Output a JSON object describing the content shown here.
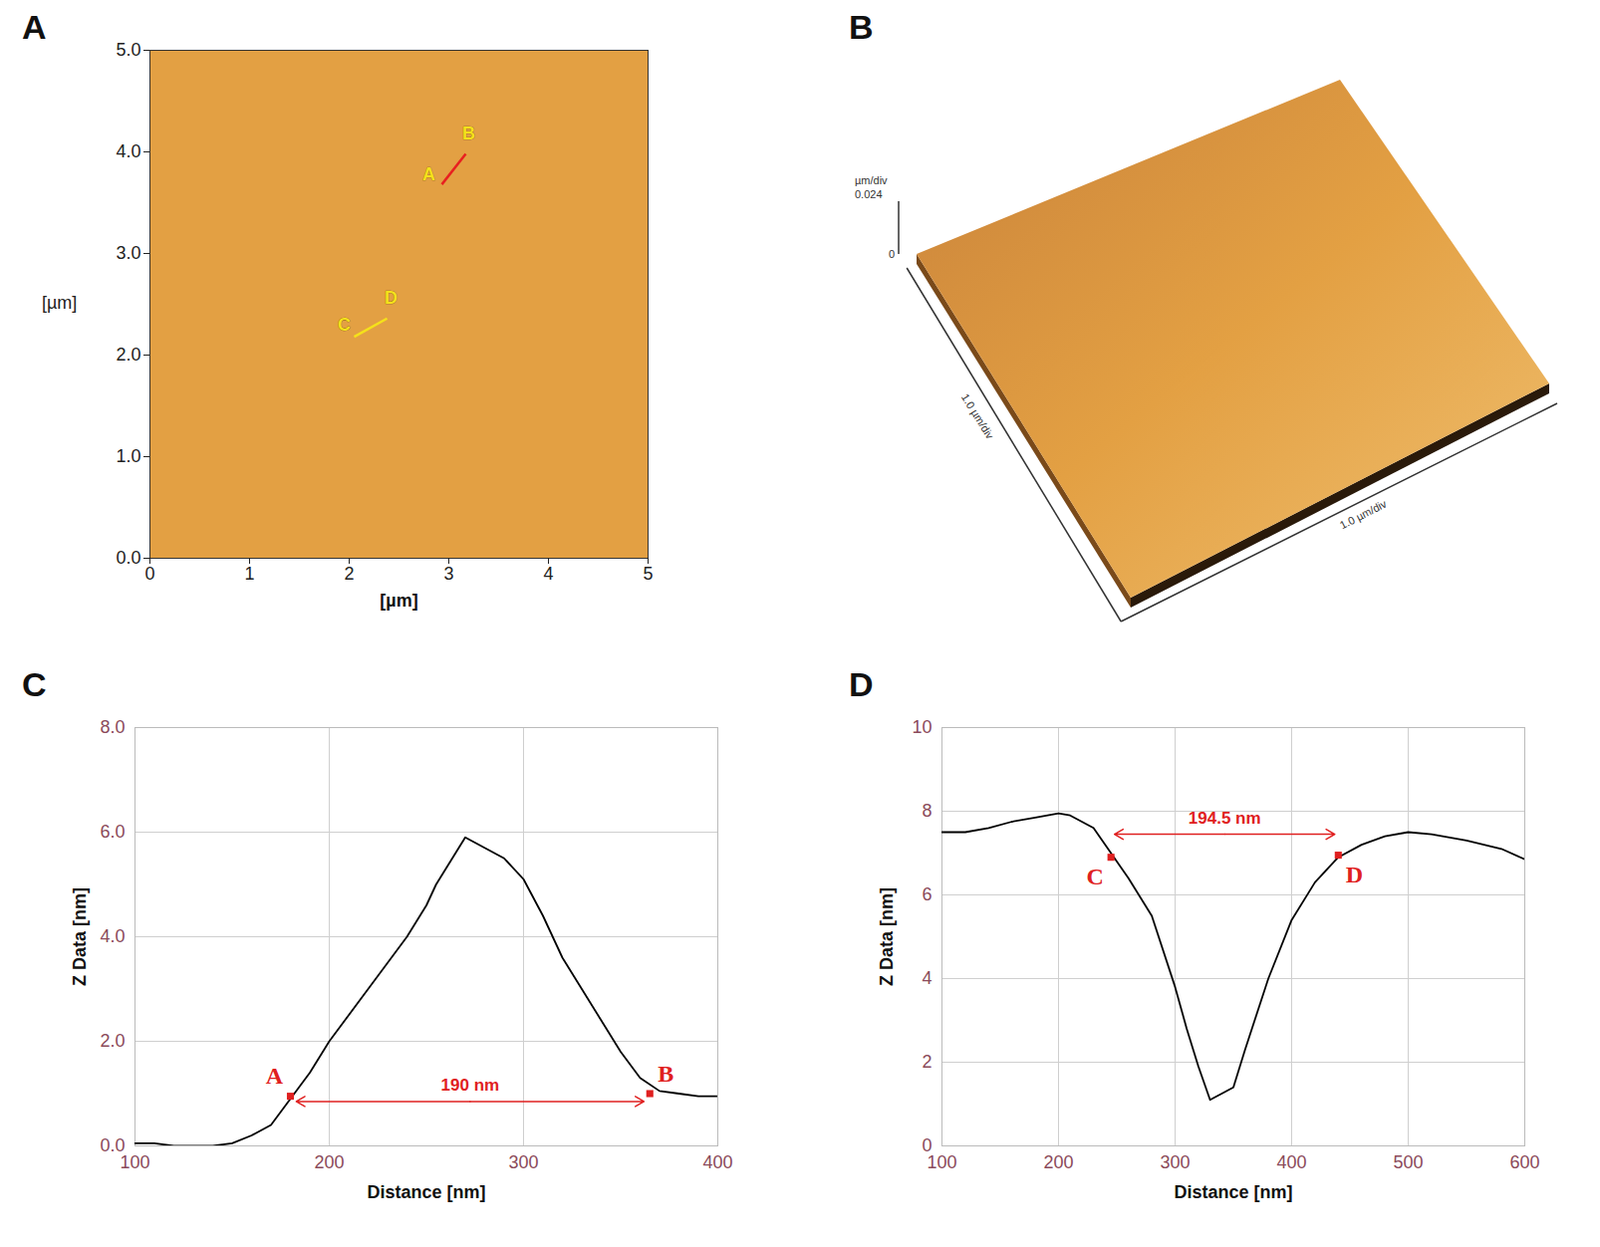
{
  "chart_data": [
    {
      "type": "image",
      "panel": "A",
      "xlabel": "[µm]",
      "ylabel": "[µm]",
      "xlim": [
        0,
        5
      ],
      "ylim": [
        0,
        5
      ],
      "xticks": [
        0,
        1,
        2,
        3,
        4,
        5
      ],
      "yticks": [
        0,
        1,
        2,
        3,
        4,
        5
      ],
      "color": "#e3a043",
      "lines": [
        {
          "x1": 2.93,
          "y1": 3.68,
          "x2": 3.17,
          "y2": 3.98,
          "color": "#e82020"
        },
        {
          "x1": 2.05,
          "y1": 2.18,
          "x2": 2.38,
          "y2": 2.36,
          "color": "#f5e11a"
        }
      ],
      "annotations": [
        {
          "label": "A",
          "x": 2.8,
          "y": 3.78,
          "color": "#f5e11a"
        },
        {
          "label": "B",
          "x": 3.2,
          "y": 4.18,
          "color": "#f5e11a"
        },
        {
          "label": "C",
          "x": 1.95,
          "y": 2.3,
          "color": "#f5e11a"
        },
        {
          "label": "D",
          "x": 2.42,
          "y": 2.56,
          "color": "#f5e11a"
        }
      ]
    },
    {
      "type": "image_3d",
      "panel": "B",
      "color": "#e3a043",
      "zlabel": "µm/div",
      "zticks": [
        0,
        0.024
      ],
      "xlabel": "1.0 µm/div",
      "ylabel": "1.0 µm/div"
    },
    {
      "type": "line",
      "panel": "C",
      "xlabel": "Distance [nm]",
      "ylabel": "Z Data [nm]",
      "xlim": [
        100,
        400
      ],
      "ylim": [
        0,
        8
      ],
      "xticks": [
        100,
        200,
        300,
        400
      ],
      "yticks": [
        0,
        2,
        4,
        6,
        8
      ],
      "grid": true,
      "color": "#000000",
      "x": [
        100,
        110,
        120,
        140,
        150,
        160,
        170,
        180,
        190,
        200,
        220,
        240,
        250,
        255,
        270,
        280,
        290,
        300,
        310,
        320,
        330,
        340,
        350,
        360,
        370,
        380,
        390,
        400
      ],
      "values": [
        0.05,
        0.05,
        0,
        0,
        0.05,
        0.2,
        0.4,
        0.9,
        1.4,
        2.0,
        3.0,
        4.0,
        4.6,
        5.0,
        5.9,
        5.7,
        5.5,
        5.1,
        4.4,
        3.6,
        3.0,
        2.4,
        1.8,
        1.3,
        1.05,
        1.0,
        0.95,
        0.95
      ],
      "markers": [
        {
          "label": "A",
          "x": 180,
          "y": 0.95
        },
        {
          "label": "B",
          "x": 365,
          "y": 1.0
        }
      ],
      "measure": {
        "label": "190 nm",
        "x1": 183,
        "x2": 362,
        "y": 0.85,
        "color": "#e02020"
      }
    },
    {
      "type": "line",
      "panel": "D",
      "xlabel": "Distance [nm]",
      "ylabel": "Z Data [nm]",
      "xlim": [
        100,
        600
      ],
      "ylim": [
        0,
        10
      ],
      "xticks": [
        100,
        200,
        300,
        400,
        500,
        600
      ],
      "yticks": [
        0,
        2,
        4,
        6,
        8,
        10
      ],
      "grid": true,
      "color": "#000000",
      "x": [
        100,
        120,
        140,
        160,
        180,
        200,
        210,
        230,
        245,
        260,
        280,
        300,
        310,
        320,
        330,
        350,
        360,
        380,
        400,
        420,
        440,
        460,
        480,
        500,
        520,
        550,
        580,
        600
      ],
      "values": [
        7.5,
        7.5,
        7.6,
        7.75,
        7.85,
        7.95,
        7.9,
        7.6,
        7.0,
        6.4,
        5.5,
        3.8,
        2.8,
        1.9,
        1.1,
        1.4,
        2.3,
        4.0,
        5.4,
        6.3,
        6.9,
        7.2,
        7.4,
        7.5,
        7.45,
        7.3,
        7.1,
        6.85
      ],
      "markers": [
        {
          "label": "C",
          "x": 245,
          "y": 6.9
        },
        {
          "label": "D",
          "x": 440,
          "y": 6.95
        }
      ],
      "measure": {
        "label": "194.5 nm",
        "x1": 248,
        "x2": 437,
        "y": 7.45,
        "color": "#e02020"
      }
    }
  ]
}
